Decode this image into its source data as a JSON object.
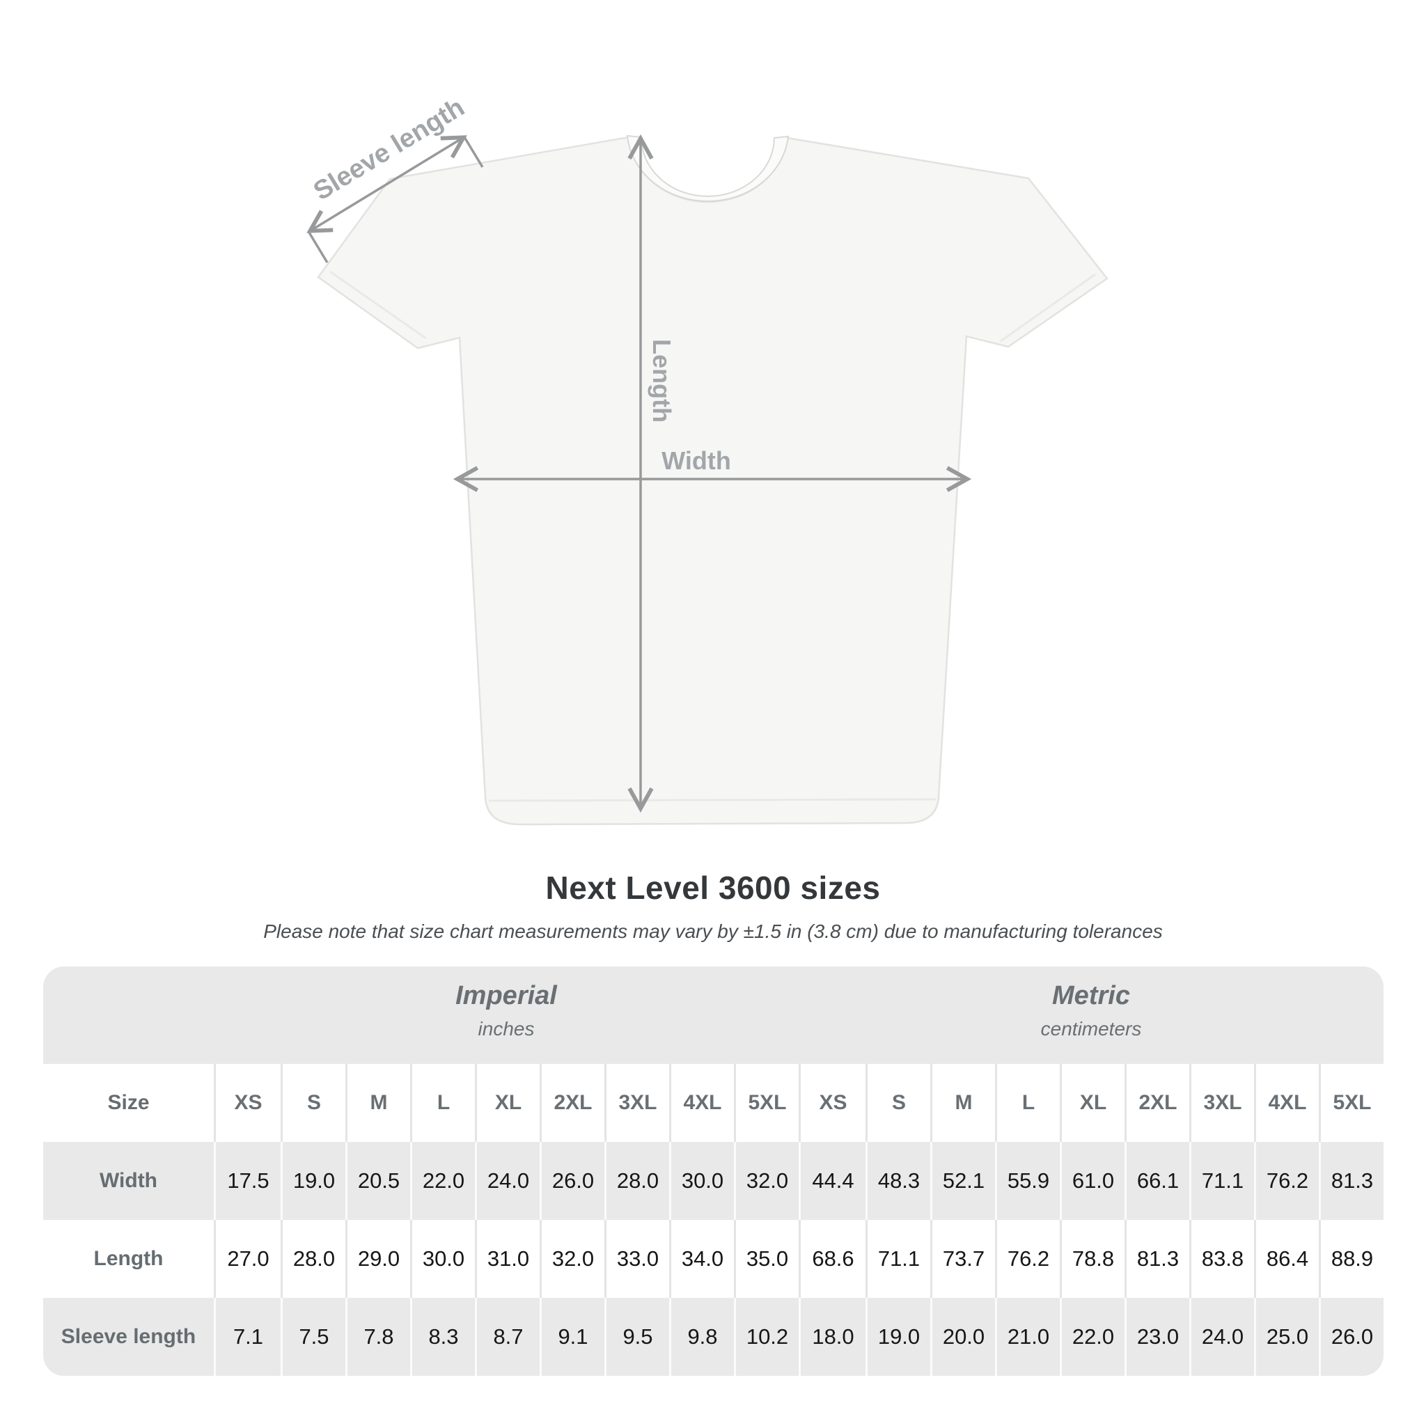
{
  "diagram": {
    "sleeve_length_label": "Sleeve length",
    "length_label": "Length",
    "width_label": "Width"
  },
  "title": "Next Level 3600 sizes",
  "note": "Please note that size chart measurements may vary by ±1.5 in (3.8 cm) due to manufacturing tolerances",
  "table": {
    "size_label": "Size",
    "sizes": [
      "XS",
      "S",
      "M",
      "L",
      "XL",
      "2XL",
      "3XL",
      "4XL",
      "5XL"
    ],
    "systems": [
      {
        "name": "Imperial",
        "unit": "inches"
      },
      {
        "name": "Metric",
        "unit": "centimeters"
      }
    ],
    "rows": [
      {
        "label": "Width",
        "imperial": [
          "17.5",
          "19.0",
          "20.5",
          "22.0",
          "24.0",
          "26.0",
          "28.0",
          "30.0",
          "32.0"
        ],
        "metric": [
          "44.4",
          "48.3",
          "52.1",
          "55.9",
          "61.0",
          "66.1",
          "71.1",
          "76.2",
          "81.3"
        ]
      },
      {
        "label": "Length",
        "imperial": [
          "27.0",
          "28.0",
          "29.0",
          "30.0",
          "31.0",
          "32.0",
          "33.0",
          "34.0",
          "35.0"
        ],
        "metric": [
          "68.6",
          "71.1",
          "73.7",
          "76.2",
          "78.8",
          "81.3",
          "83.8",
          "86.4",
          "88.9"
        ]
      },
      {
        "label": "Sleeve length",
        "imperial": [
          "7.1",
          "7.5",
          "7.8",
          "8.3",
          "8.7",
          "9.1",
          "9.5",
          "9.8",
          "10.2"
        ],
        "metric": [
          "18.0",
          "19.0",
          "20.0",
          "21.0",
          "22.0",
          "23.0",
          "24.0",
          "25.0",
          "26.0"
        ]
      }
    ]
  },
  "colors": {
    "table_background": "#e9e9e9",
    "muted_header_text": "#696f73",
    "value_text": "#161616",
    "diagram_line": "#97999b",
    "diagram_label": "#a2a6a9",
    "title_text": "#34383b"
  }
}
